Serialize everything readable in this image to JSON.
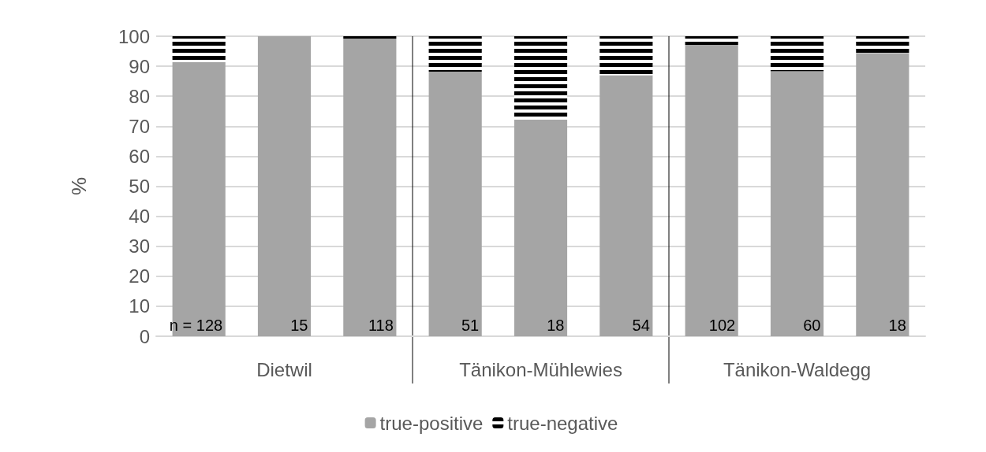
{
  "chart_data": {
    "type": "bar",
    "stacked": true,
    "ylabel": "%",
    "categories": [
      null,
      "Dietwil",
      null,
      null,
      "Tänikon-Mühlewies",
      null,
      null,
      "Tänikon-Waldegg",
      null
    ],
    "series": [
      {
        "name": "true-positive",
        "color": "#a5a5a5",
        "values": [
          91.4,
          100,
          99.2,
          88.2,
          72.2,
          87.0,
          97.1,
          88.3,
          94.4
        ]
      },
      {
        "name": "true-negative",
        "color": "#000000",
        "values": [
          8.6,
          0,
          0.8,
          11.8,
          27.8,
          13.0,
          2.9,
          11.7,
          5.6
        ]
      }
    ],
    "ylim": [
      0,
      100
    ],
    "yticks": [
      0,
      10,
      20,
      30,
      40,
      50,
      60,
      70,
      80,
      90,
      100
    ],
    "grid": "y",
    "legend": "bottom",
    "annotations": [
      "n = 128",
      "15",
      "118",
      "51",
      "18",
      "54",
      "102",
      "60",
      "18"
    ]
  }
}
